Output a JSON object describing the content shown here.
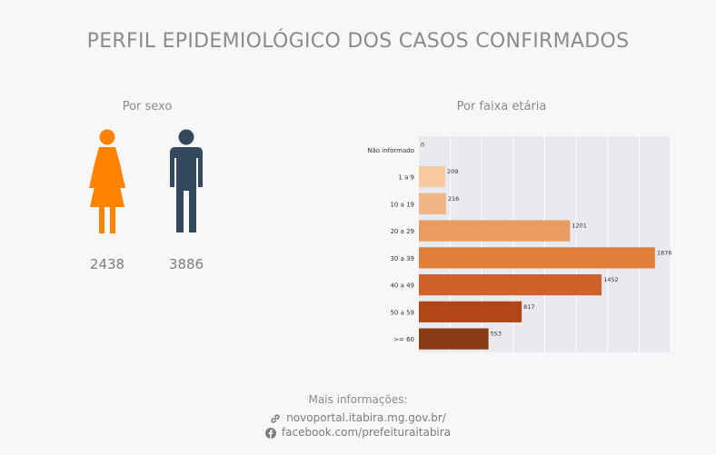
{
  "page": {
    "title": "PERFIL EPIDEMIOLÓGICO DOS CASOS CONFIRMADOS"
  },
  "sex": {
    "subtitle": "Por sexo",
    "female_count": "2438",
    "male_count": "3886",
    "female_color": "#ff8200",
    "male_color": "#34495e"
  },
  "age": {
    "subtitle": "Por faixa etária"
  },
  "chart_data": {
    "type": "bar",
    "orientation": "horizontal",
    "title": "",
    "xlabel": "",
    "ylabel": "",
    "categories": [
      "Não informado",
      "1 a 9",
      "10 a 19",
      "20 a 29",
      "30 a 39",
      "40 a 49",
      "50 a 59",
      ">= 60"
    ],
    "values": [
      0,
      209,
      216,
      1201,
      1876,
      1452,
      817,
      553
    ],
    "colors": [
      "#fde6ce",
      "#f6cba0",
      "#f0b583",
      "#e99b61",
      "#e07f3a",
      "#d0612a",
      "#b14717",
      "#8a3a14"
    ],
    "xlim": [
      0,
      2000
    ],
    "grid": true,
    "data_labels": true,
    "background": "#e9e9f0"
  },
  "footer": {
    "label": "Mais informações:",
    "site": "novoportal.itabira.mg.gov.br/",
    "facebook": "facebook.com/prefeituraitabira"
  }
}
